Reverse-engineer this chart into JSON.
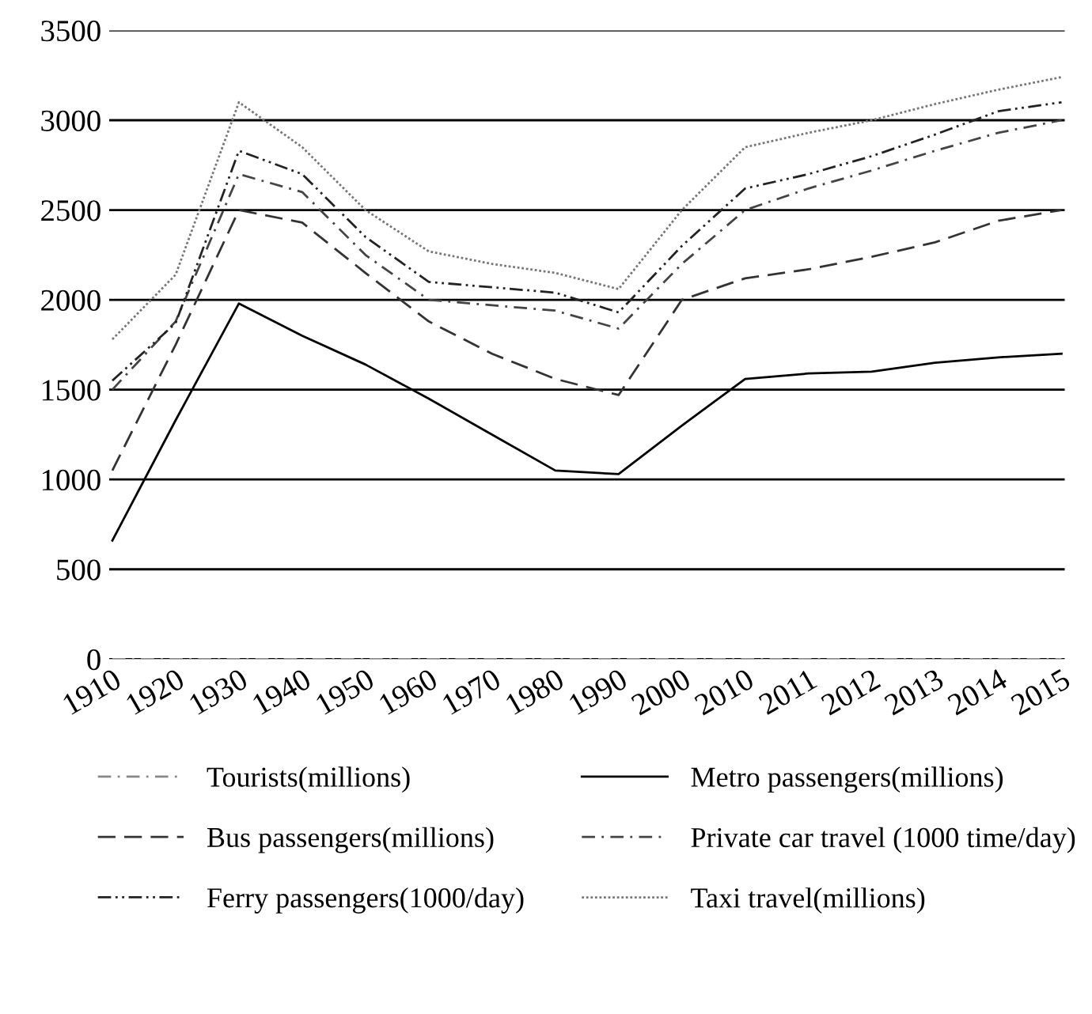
{
  "chart_data": {
    "type": "line",
    "categories": [
      "1910",
      "1920",
      "1930",
      "1940",
      "1950",
      "1960",
      "1970",
      "1980",
      "1990",
      "2000",
      "2010",
      "2011",
      "2012",
      "2013",
      "2014",
      "2015"
    ],
    "ylim": [
      0,
      3500
    ],
    "yticks": [
      0,
      500,
      1000,
      1500,
      2000,
      2500,
      3000,
      3500
    ],
    "grid": "y",
    "legend": "bottom",
    "marker": "none",
    "series": [
      {
        "name": "Tourists(millions)",
        "color": "#888888",
        "line_style": "dashdot",
        "values": [
          0,
          0,
          0,
          0,
          0,
          0,
          0,
          0,
          0,
          0,
          0,
          0,
          0,
          0,
          0,
          0
        ]
      },
      {
        "name": "Metro passengers(millions)",
        "color": "#000000",
        "line_style": "solid",
        "values": [
          660,
          1330,
          1980,
          1800,
          1640,
          1450,
          1250,
          1050,
          1030,
          1300,
          1560,
          1590,
          1600,
          1650,
          1680,
          1700
        ]
      },
      {
        "name": "Bus passengers(millions)",
        "color": "#333333",
        "line_style": "dashed",
        "values": [
          1050,
          1750,
          2500,
          2430,
          2150,
          1880,
          1700,
          1560,
          1470,
          2000,
          2120,
          2170,
          2240,
          2320,
          2440,
          2500
        ]
      },
      {
        "name": "Private car travel (1000 time/day)",
        "color": "#444444",
        "line_style": "dashdot",
        "values": [
          1500,
          1880,
          2700,
          2600,
          2250,
          2000,
          1970,
          1940,
          1840,
          2200,
          2500,
          2620,
          2720,
          2830,
          2930,
          3000
        ]
      },
      {
        "name": "Ferry passengers(1000/day)",
        "color": "#222222",
        "line_style": "dashdotdot",
        "values": [
          1550,
          1870,
          2830,
          2700,
          2350,
          2100,
          2070,
          2040,
          1930,
          2300,
          2620,
          2700,
          2800,
          2920,
          3050,
          3100
        ]
      },
      {
        "name": "Taxi travel(millions)",
        "color": "#777777",
        "line_style": "dotted",
        "values": [
          1780,
          2140,
          3100,
          2850,
          2500,
          2270,
          2200,
          2150,
          2060,
          2500,
          2850,
          2930,
          3000,
          3090,
          3170,
          3240
        ]
      }
    ]
  }
}
